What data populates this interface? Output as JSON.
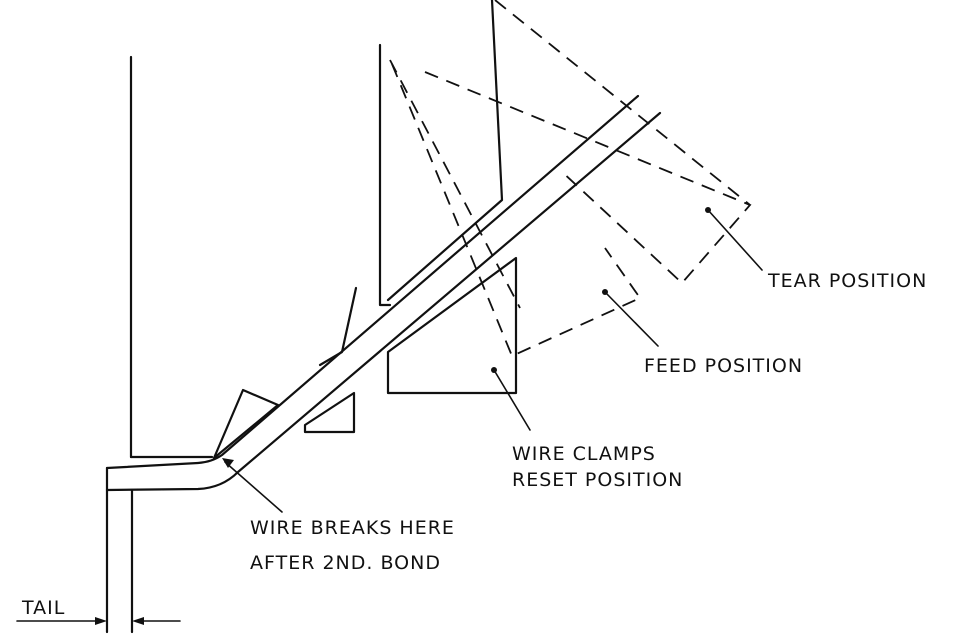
{
  "labels": {
    "tear_position": "TEAR POSITION",
    "feed_position": "FEED POSITION",
    "wire_clamps_line1": "WIRE CLAMPS",
    "wire_clamps_line2": "RESET POSITION",
    "wire_breaks_line1": "WIRE BREAKS HERE",
    "wire_breaks_line2": "AFTER 2ND. BOND",
    "tail": "TAIL"
  }
}
